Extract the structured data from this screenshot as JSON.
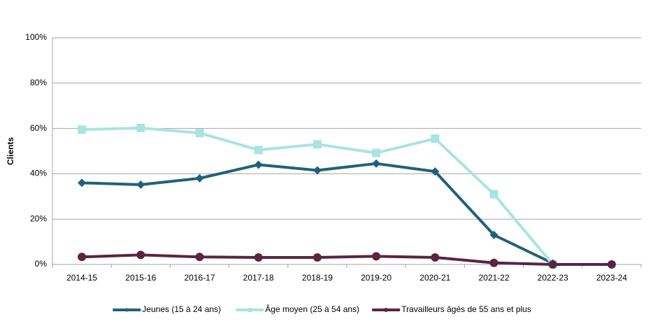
{
  "chart_data": {
    "type": "line",
    "y_label": "Clients",
    "categories": [
      "2014-15",
      "2015-16",
      "2016-17",
      "2017-18",
      "2018-19",
      "2019-20",
      "2020-21",
      "2021-22",
      "2022-23",
      "2023-24"
    ],
    "series": [
      {
        "name": "Jeunes (15 à 24 ans)",
        "color": "#22607a",
        "marker": "diamond",
        "values": [
          36,
          35.2,
          38,
          44,
          41.5,
          44.5,
          41,
          13,
          0.5,
          null
        ]
      },
      {
        "name": "Âge moyen (25 à 54 ans)",
        "color": "#a9e4e1",
        "marker": "square",
        "values": [
          59.5,
          60.2,
          58,
          50.5,
          53,
          49.2,
          55.5,
          31,
          0,
          null
        ]
      },
      {
        "name": "Travailleurs âgés de 55 ans et plus",
        "color": "#5b2440",
        "marker": "circle",
        "values": [
          3.3,
          4.2,
          3.3,
          3.1,
          3.1,
          3.6,
          3.1,
          0.7,
          0,
          0
        ]
      }
    ],
    "ylim": [
      0,
      100
    ],
    "yticks": [
      {
        "value": 0,
        "label": "0%"
      },
      {
        "value": 20,
        "label": "20%"
      },
      {
        "value": 40,
        "label": "40%"
      },
      {
        "value": 60,
        "label": "60%"
      },
      {
        "value": 80,
        "label": "80%"
      },
      {
        "value": 100,
        "label": "100%"
      }
    ],
    "grid": true,
    "legend": "bottom"
  }
}
